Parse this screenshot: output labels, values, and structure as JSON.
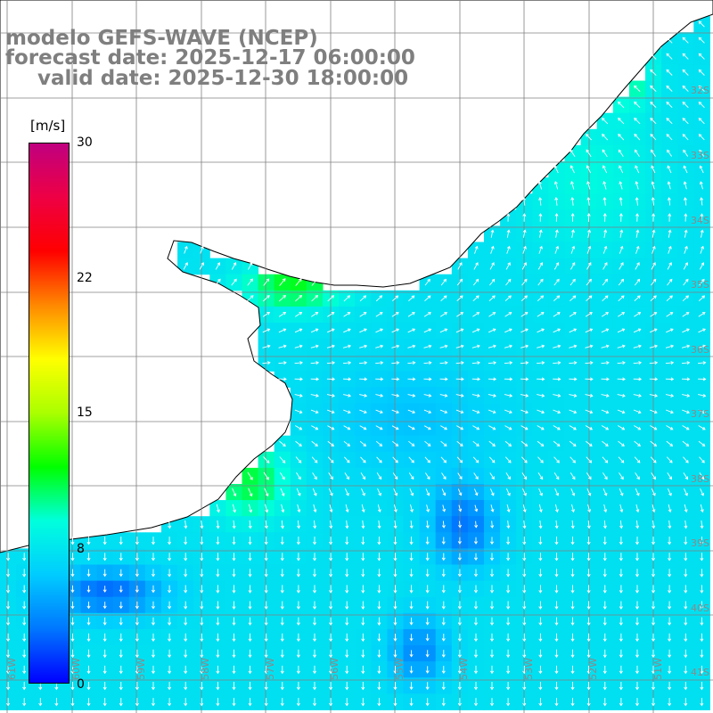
{
  "title": {
    "line1": "modelo GEFS-WAVE (NCEP)",
    "line2": "forecast date: 2025-12-17 06:00:00",
    "line3": "valid date: 2025-12-30 18:00:00"
  },
  "colorbar": {
    "unit": "[m/s]",
    "ticks": [
      "30",
      "22",
      "15",
      "8",
      "0"
    ],
    "tick_values": [
      30,
      22,
      15,
      8,
      0
    ],
    "min": 0,
    "max": 30,
    "colors": [
      "#0000ff",
      "#0077ff",
      "#00ccff",
      "#00ffdd",
      "#00ff00",
      "#aaff00",
      "#ffff00",
      "#ff8800",
      "#ff0000",
      "#ee0044",
      "#c0007f"
    ]
  },
  "map": {
    "lat_labels": [
      "32S",
      "33S",
      "34S",
      "35S",
      "36S",
      "37S",
      "38S",
      "39S",
      "40S",
      "41S"
    ],
    "lat_values": [
      32,
      33,
      34,
      35,
      36,
      37,
      38,
      39,
      40,
      41
    ],
    "lon_labels": [
      "61W",
      "60W",
      "59W",
      "58W",
      "57W",
      "56W",
      "55W",
      "54W",
      "53W",
      "52W",
      "51W"
    ],
    "lon_values": [
      61,
      60,
      59,
      58,
      57,
      56,
      55,
      54,
      53,
      52,
      51
    ],
    "land_color": "#ffffff",
    "coast_color": "#000000",
    "grid_color": "#808080",
    "arrow_color": "#ffffff",
    "field": "wind speed and direction"
  }
}
